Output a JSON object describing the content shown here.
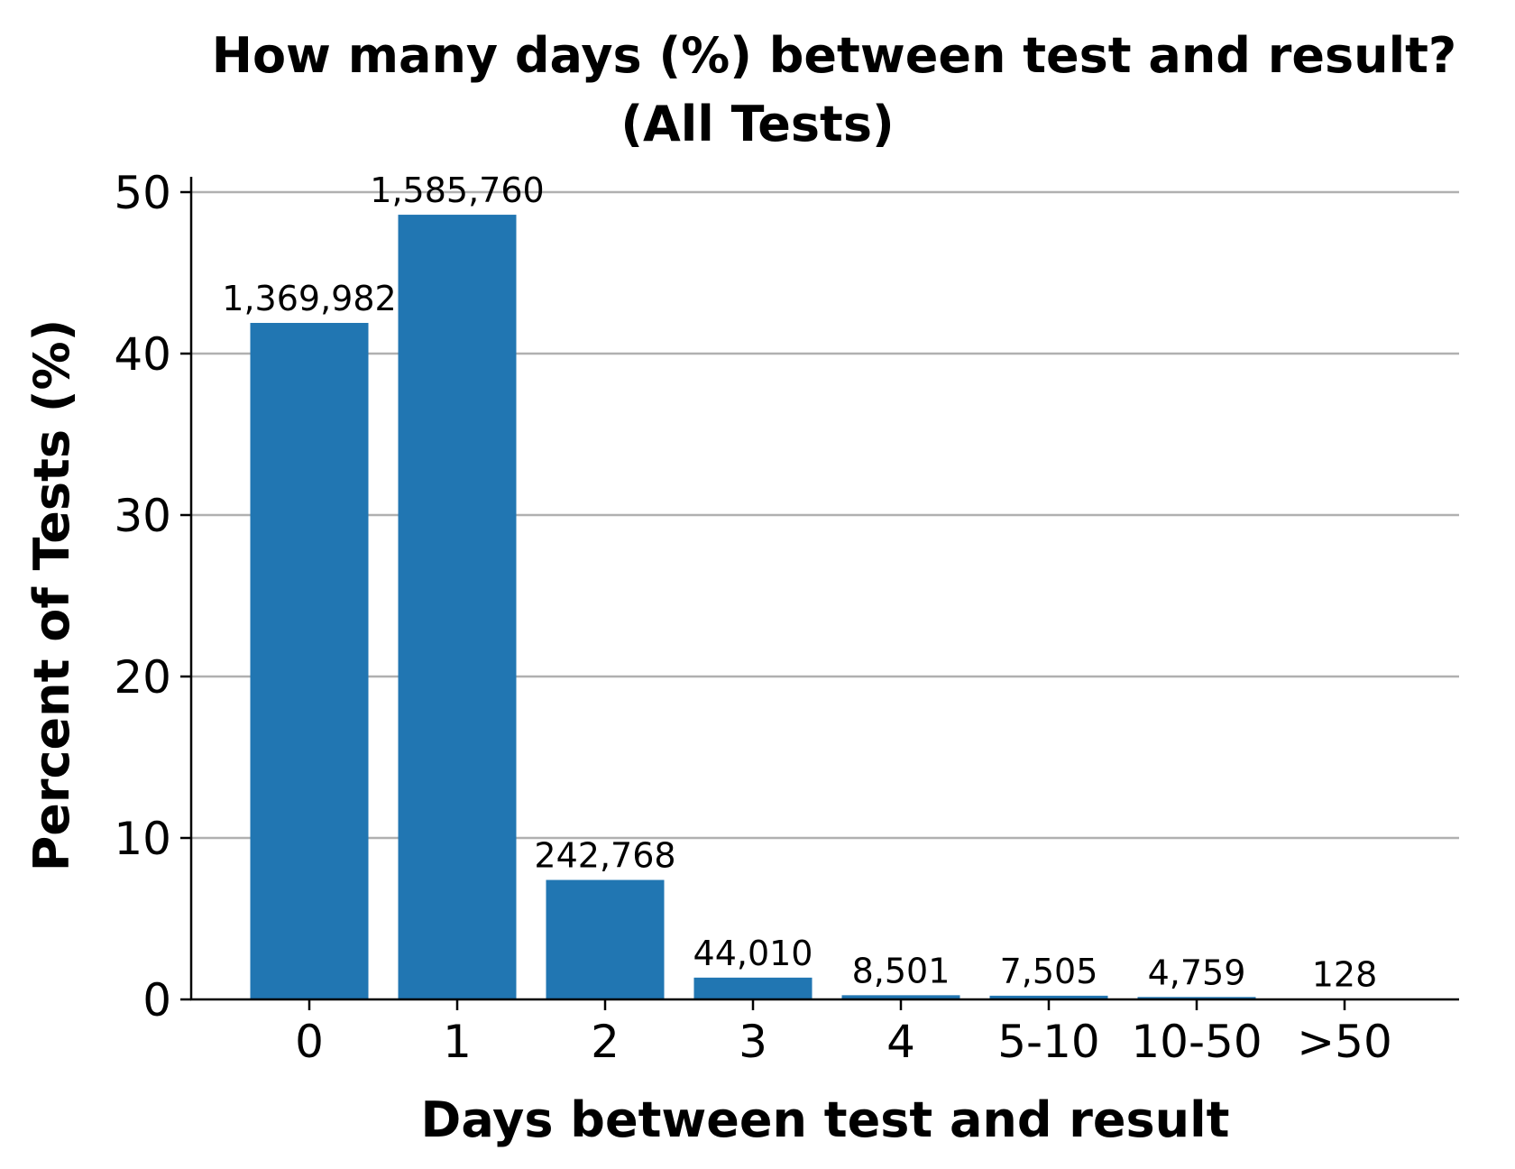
{
  "chart_data": {
    "type": "bar",
    "title": "How many days (%) between test and result?",
    "subtitle": "(All Tests)",
    "xlabel": "Days between test and result",
    "ylabel": "Percent of Tests (%)",
    "categories": [
      "0",
      "1",
      "2",
      "3",
      "4",
      "5-10",
      "10-50",
      ">50"
    ],
    "values": [
      41.9,
      48.6,
      7.4,
      1.35,
      0.26,
      0.23,
      0.15,
      0.004
    ],
    "data_labels": [
      "1,369,982",
      "1,585,760",
      "242,768",
      "44,010",
      "8,501",
      "7,505",
      "4,759",
      "128"
    ],
    "ylim": [
      0,
      51
    ],
    "yticks": [
      0,
      10,
      20,
      30,
      40,
      50
    ],
    "grid": true,
    "bar_color": "#2176b2",
    "grid_color": "#b0b0b0"
  }
}
